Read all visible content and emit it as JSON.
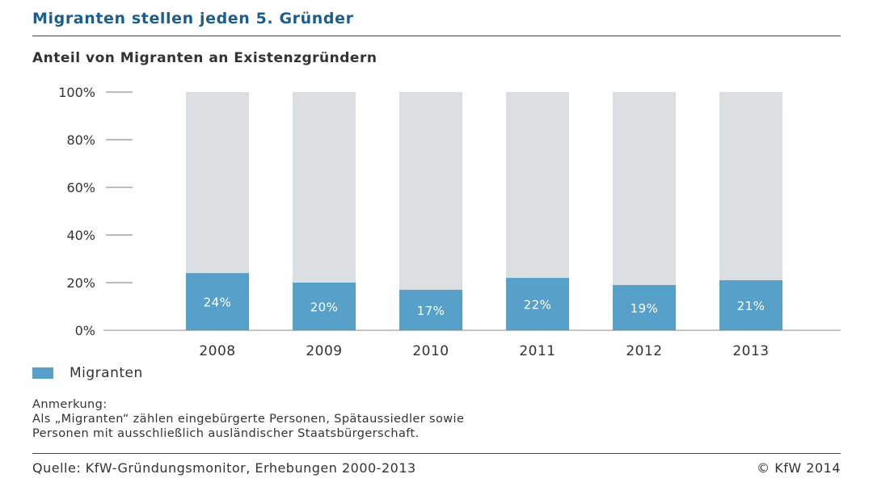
{
  "header": {
    "headline": "Migranten stellen jeden 5. Gründer"
  },
  "chart_data": {
    "type": "bar",
    "title": "Anteil von Migranten an Existenzgründern",
    "categories": [
      "2008",
      "2009",
      "2010",
      "2011",
      "2012",
      "2013"
    ],
    "series": [
      {
        "name": "Migranten",
        "values": [
          24,
          20,
          17,
          22,
          19,
          21
        ],
        "color": "#56a0c9"
      }
    ],
    "value_labels": [
      "24%",
      "20%",
      "17%",
      "22%",
      "19%",
      "21%"
    ],
    "background_color": "#dcdfe2",
    "yticks": [
      "0%",
      "20%",
      "40%",
      "60%",
      "80%",
      "100%"
    ],
    "ylim": [
      0,
      100
    ],
    "grid": false,
    "legend_position": "bottom-left"
  },
  "note": {
    "heading": "Anmerkung:",
    "line1": "Als „Migranten“ zählen eingebürgerte Personen, Spätaussiedler sowie",
    "line2": "Personen mit ausschließlich ausländischer Staatsbürgerschaft."
  },
  "footer": {
    "source": "Quelle: KfW-Gründungsmonitor, Erhebungen 2000-2013",
    "copyright": "© KfW 2014"
  }
}
